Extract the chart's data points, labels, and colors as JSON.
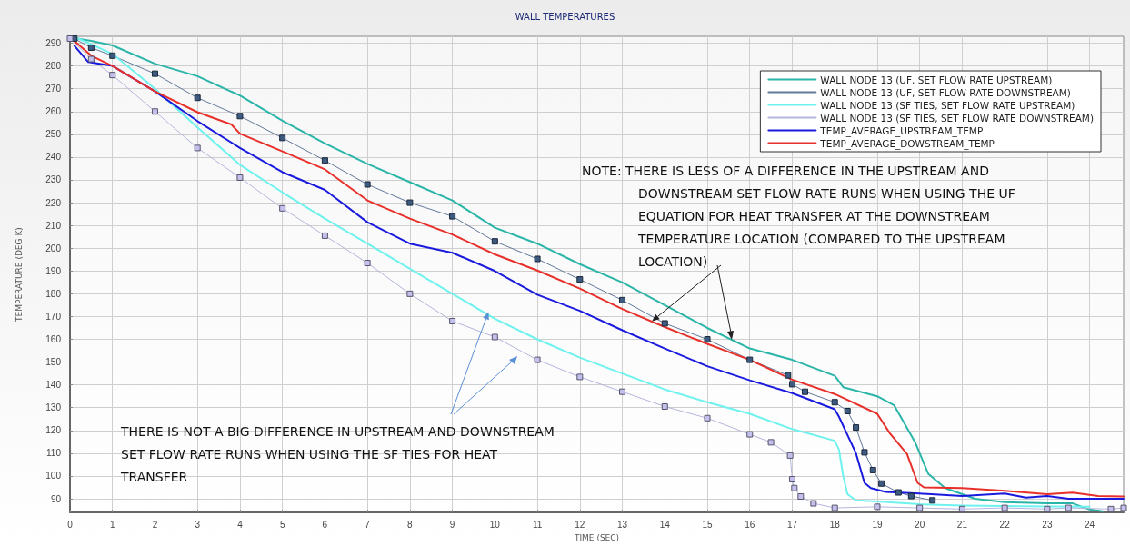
{
  "chart_data": {
    "type": "line",
    "title": "WALL TEMPERATURES",
    "xlabel": "TIME (SEC)",
    "ylabel": "TEMPERATURE (DEG K)",
    "xlim": [
      0,
      24.8
    ],
    "xticks": [
      0,
      1,
      2,
      3,
      4,
      5,
      6,
      7,
      8,
      9,
      10,
      11,
      12,
      13,
      14,
      15,
      16,
      17,
      18,
      19,
      20,
      21,
      22,
      23,
      24
    ],
    "ylim": [
      84,
      293
    ],
    "yticks": [
      90,
      100,
      110,
      120,
      130,
      140,
      150,
      160,
      170,
      180,
      190,
      200,
      210,
      220,
      230,
      240,
      250,
      260,
      270,
      280,
      290
    ],
    "grid": true,
    "legend": "top right",
    "annotations": [
      {
        "text": "NOTE:  THERE IS LESS OF A DIFFERENCE IN THE UPSTREAM AND DOWNSTREAM SET FLOW RATE RUNS WHEN USING THE UF EQUATION FOR HEAT TRANSFER AT THE DOWNSTREAM TEMPERATURE LOCATION (COMPARED TO THE UPSTREAM LOCATION)",
        "x": 13.7,
        "y": 168
      },
      {
        "text": "THERE IS NOT A BIG DIFFERENCE IN UPSTREAM AND DOWNSTREAM SET FLOW RATE RUNS WHEN USING THE SF TIES FOR HEAT TRANSFER",
        "x": 9.85,
        "y": 172
      }
    ],
    "series": [
      {
        "name": "WALL NODE 13 (UF, SET FLOW RATE UPSTREAM)",
        "color": "#2ab5a8",
        "marker": "none",
        "x": [
          0,
          0.5,
          1,
          2,
          3,
          4,
          5,
          6,
          7,
          8,
          9,
          10,
          11,
          12,
          13,
          14,
          15,
          16,
          17,
          18,
          18.2,
          19,
          19.4,
          19.9,
          20.2,
          20.6,
          21.3,
          22,
          23,
          23.6,
          24,
          24.3
        ],
        "values": [
          292.5,
          291,
          289,
          281,
          275.5,
          267,
          256,
          246,
          237,
          229,
          221,
          209,
          202,
          193,
          185,
          175,
          165,
          156,
          151,
          144,
          139,
          135,
          131,
          114.5,
          101,
          94.7,
          90,
          88.5,
          88,
          88,
          85.3,
          84.5
        ]
      },
      {
        "name": "WALL NODE 13 (UF, SET FLOW RATE DOWNSTREAM)",
        "color": "#3d5a80",
        "marker": "square",
        "x": [
          0.1,
          0.5,
          1,
          2,
          3,
          4,
          5,
          6,
          7,
          8,
          9,
          10,
          11,
          12,
          13,
          14,
          15,
          16,
          16.9,
          17,
          17.3,
          18,
          18.3,
          18.5,
          18.7,
          18.9,
          19.1,
          19.5,
          19.8,
          20.3
        ],
        "values": [
          292,
          288,
          284.5,
          276.6,
          266,
          258,
          248.4,
          238.5,
          228,
          220,
          214,
          203,
          195.3,
          186.3,
          177.2,
          167,
          160,
          151,
          144.2,
          140.3,
          137,
          132.4,
          128.5,
          121.3,
          110.4,
          102.6,
          96.7,
          92.8,
          91.2,
          89.3
        ]
      },
      {
        "name": "WALL NODE 13 (SF TIES, SET FLOW RATE UPSTREAM)",
        "color": "#6ef2ee",
        "marker": "none",
        "x": [
          0.2,
          1,
          2,
          3,
          4,
          5,
          6,
          7,
          8,
          9,
          10,
          11,
          12,
          13,
          14,
          15,
          16,
          17,
          18,
          18.1,
          18.2,
          18.3,
          18.5,
          19,
          20,
          21,
          22,
          23,
          24
        ],
        "values": [
          292,
          285.3,
          270,
          253,
          236.6,
          224.5,
          213,
          202,
          191,
          180,
          169,
          160,
          152,
          145,
          138,
          132.4,
          127.3,
          120.6,
          115.5,
          111.6,
          100,
          92,
          89.3,
          88.8,
          87.6,
          87,
          86.8,
          86.6,
          86.5
        ]
      },
      {
        "name": "WALL NODE 13 (SF TIES, SET FLOW RATE DOWNSTREAM)",
        "color": "#c4c0ee",
        "marker": "square",
        "x": [
          0,
          0.5,
          1,
          2,
          3,
          4,
          5,
          6,
          7,
          8,
          9,
          10,
          11,
          12,
          13,
          14,
          15,
          16,
          16.5,
          16.95,
          17,
          17.05,
          17.2,
          17.5,
          18,
          19,
          20,
          21,
          22,
          23,
          23.5,
          24.5,
          24.8
        ],
        "values": [
          292,
          283,
          276,
          260,
          244,
          231,
          217.5,
          205.5,
          193.5,
          180,
          168,
          161,
          151,
          143.5,
          137,
          130.5,
          125.4,
          118.3,
          114.8,
          109,
          98.6,
          94.7,
          91,
          88,
          86,
          86.5,
          86,
          85.5,
          86,
          85.5,
          86,
          85.5,
          86
        ]
      },
      {
        "name": "TEMP_AVERAGE_UPSTREAM_TEMP",
        "color": "#1a1adf",
        "marker": "none",
        "x": [
          0.1,
          0.43,
          1,
          2,
          3,
          4,
          5,
          6,
          7,
          8,
          9,
          10,
          11,
          12,
          13,
          14,
          15,
          16,
          17,
          18,
          18.1,
          18.3,
          18.5,
          18.7,
          18.85,
          19.2,
          20,
          21,
          22,
          22.5,
          23,
          23.5,
          24.8
        ],
        "values": [
          289,
          281.7,
          280,
          268.8,
          255.8,
          244,
          233.4,
          225.6,
          211.4,
          202,
          198,
          190,
          179.6,
          172.5,
          164,
          156,
          148.2,
          142,
          136.4,
          129.3,
          126,
          118,
          110,
          97,
          94.7,
          93,
          92.3,
          91.2,
          92.3,
          90.5,
          91.2,
          90,
          90
        ]
      },
      {
        "name": "TEMP_AVERAGE_DOWSTREAM_TEMP",
        "color": "#e8302a",
        "marker": "none",
        "x": [
          0.1,
          0.5,
          1,
          2,
          3,
          3.8,
          4,
          5,
          6,
          7,
          8,
          9,
          10,
          11,
          12,
          13,
          14,
          15,
          16,
          17,
          18,
          19,
          19.3,
          19.7,
          19.95,
          20.1,
          21,
          22,
          23,
          23.6,
          24.2,
          24.8
        ],
        "values": [
          291,
          284.5,
          280,
          268.8,
          259.7,
          254.3,
          250.3,
          242.5,
          234.6,
          221,
          213,
          206,
          197.3,
          190.2,
          182.3,
          173.3,
          165.4,
          158,
          151,
          142.3,
          136,
          127.3,
          118.7,
          109.7,
          97,
          95,
          94.7,
          93.5,
          92,
          92.7,
          91.2,
          91
        ]
      }
    ]
  }
}
